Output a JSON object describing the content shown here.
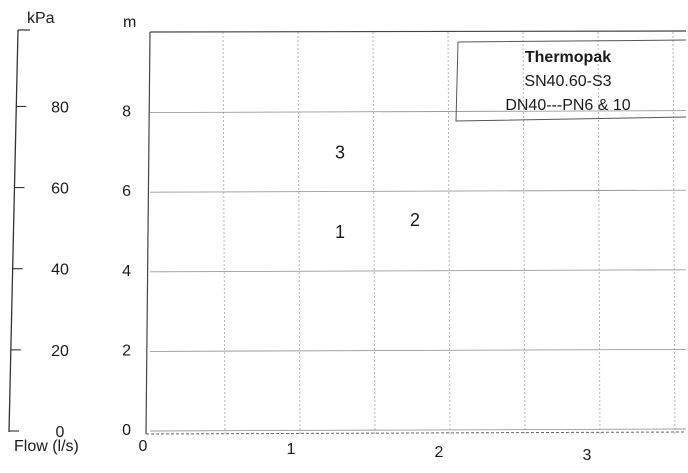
{
  "chart_data": {
    "type": "line",
    "title": "Thermopak",
    "subtitle": "SN40.60-S3",
    "subtitle2": "DN40---PN6 & 10",
    "xlabel": "Flow (l/s)",
    "ylabel_left": "kPa",
    "ylabel_right": "m",
    "xlim": [
      0,
      3.5
    ],
    "ylim": [
      0,
      10
    ],
    "xticks": [
      "0",
      "1",
      "2",
      "3"
    ],
    "yticks": [
      "0",
      "2",
      "4",
      "6",
      "8"
    ],
    "pressure_ticks": [
      "0",
      "20",
      "40",
      "60",
      "80"
    ],
    "grid": true,
    "curve_labels": [
      {
        "text": "1",
        "x": 1.3,
        "y": 5.0
      },
      {
        "text": "2",
        "x": 1.8,
        "y": 5.3
      },
      {
        "text": "3",
        "x": 1.3,
        "y": 7.0
      }
    ],
    "series": []
  }
}
